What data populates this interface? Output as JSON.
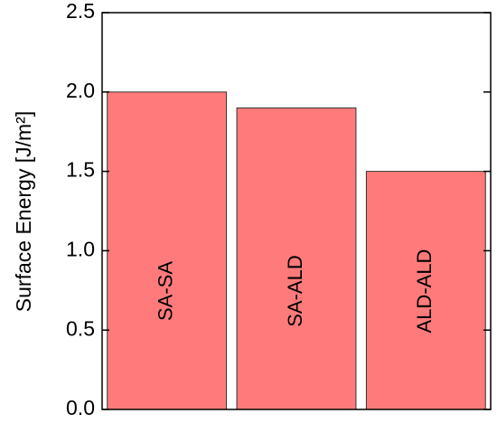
{
  "chart_data": {
    "type": "bar",
    "y_label": "Surface Energy [J/m²]",
    "categories": [
      "SA-SA",
      "SA-ALD",
      "ALD-ALD"
    ],
    "values": [
      2.0,
      1.9,
      1.5
    ],
    "color": "#ff7b7b",
    "ylim": [
      0,
      2.5
    ],
    "yticks": [
      {
        "value": 0,
        "label": "0.0"
      },
      0.5,
      {
        "value": 1,
        "label": "1.0"
      },
      1.5,
      {
        "value": 2,
        "label": "2.0"
      },
      2.5
    ]
  }
}
